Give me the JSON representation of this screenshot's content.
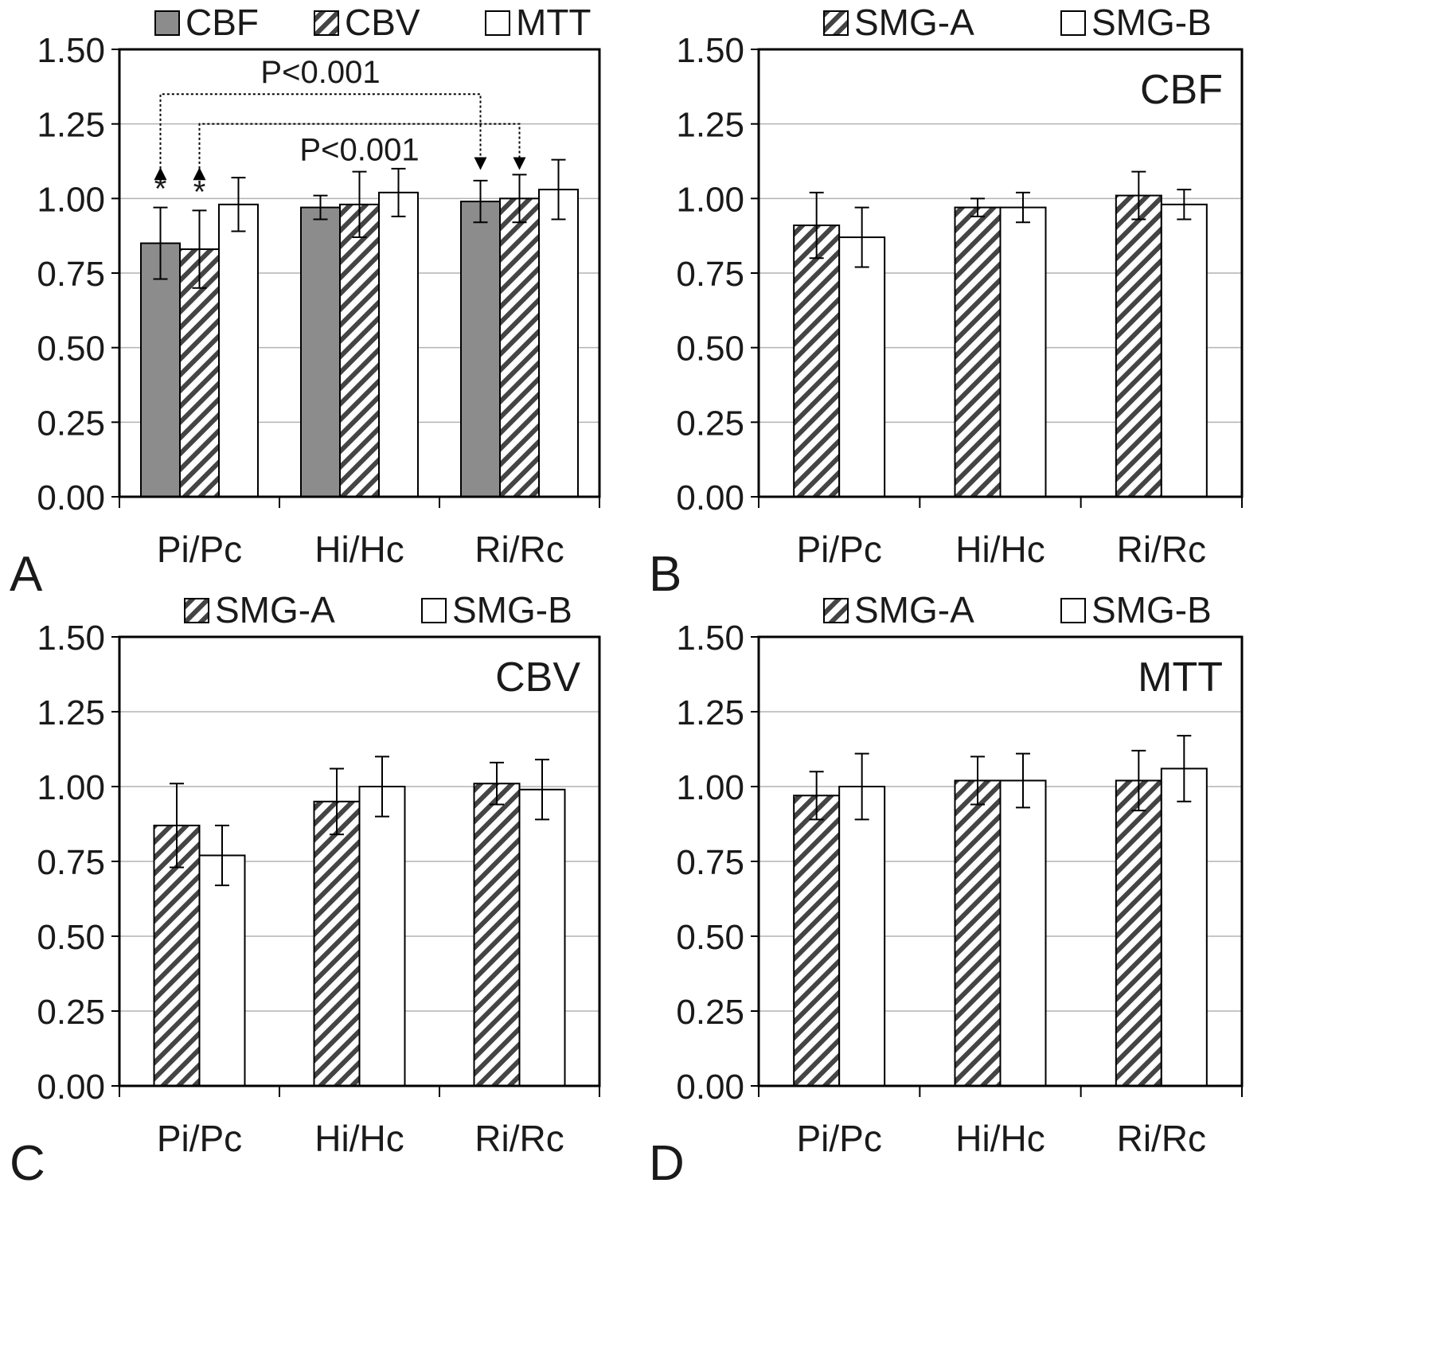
{
  "colors": {
    "filled": "#8c8c8c",
    "hatch": "#444444",
    "white": "#ffffff",
    "axis": "#000000",
    "grid": "#b3b3b3"
  },
  "chart_data": [
    {
      "panel_label": "A",
      "type": "bar",
      "categories": [
        "Pi/Pc",
        "Hi/Hc",
        "Ri/Rc"
      ],
      "ylim": [
        0,
        1.5
      ],
      "yticks": [
        "0.00",
        "0.25",
        "0.50",
        "0.75",
        "1.00",
        "1.25",
        "1.50"
      ],
      "inset_title": "",
      "grid": true,
      "legend_position": "top",
      "series": [
        {
          "name": "CBF",
          "style": "filled",
          "values": [
            0.85,
            0.97,
            0.99
          ],
          "errors": [
            0.12,
            0.04,
            0.07
          ]
        },
        {
          "name": "CBV",
          "style": "hatched",
          "values": [
            0.83,
            0.98,
            1.0
          ],
          "errors": [
            0.13,
            0.11,
            0.08
          ]
        },
        {
          "name": "MTT",
          "style": "white",
          "values": [
            0.98,
            1.02,
            1.03
          ],
          "errors": [
            0.09,
            0.08,
            0.1
          ]
        }
      ],
      "significance_marks": [
        "*",
        "*"
      ],
      "annotations": [
        {
          "text": "P<0.001",
          "from": "Pi/Pc CBF",
          "to": "Ri/Rc CBF"
        },
        {
          "text": "P<0.001",
          "from": "Pi/Pc CBV",
          "to": "Ri/Rc CBV"
        }
      ]
    },
    {
      "panel_label": "B",
      "type": "bar",
      "categories": [
        "Pi/Pc",
        "Hi/Hc",
        "Ri/Rc"
      ],
      "ylim": [
        0,
        1.5
      ],
      "yticks": [
        "0.00",
        "0.25",
        "0.50",
        "0.75",
        "1.00",
        "1.25",
        "1.50"
      ],
      "inset_title": "CBF",
      "grid": true,
      "legend_position": "top",
      "series": [
        {
          "name": "SMG-A",
          "style": "hatched",
          "values": [
            0.91,
            0.97,
            1.01
          ],
          "errors": [
            0.11,
            0.03,
            0.08
          ]
        },
        {
          "name": "SMG-B",
          "style": "white",
          "values": [
            0.87,
            0.97,
            0.98
          ],
          "errors": [
            0.1,
            0.05,
            0.05
          ]
        }
      ]
    },
    {
      "panel_label": "C",
      "type": "bar",
      "categories": [
        "Pi/Pc",
        "Hi/Hc",
        "Ri/Rc"
      ],
      "ylim": [
        0,
        1.5
      ],
      "yticks": [
        "0.00",
        "0.25",
        "0.50",
        "0.75",
        "1.00",
        "1.25",
        "1.50"
      ],
      "inset_title": "CBV",
      "grid": true,
      "legend_position": "top",
      "series": [
        {
          "name": "SMG-A",
          "style": "hatched",
          "values": [
            0.87,
            0.95,
            1.01
          ],
          "errors": [
            0.14,
            0.11,
            0.07
          ]
        },
        {
          "name": "SMG-B",
          "style": "white",
          "values": [
            0.77,
            1.0,
            0.99
          ],
          "errors": [
            0.1,
            0.1,
            0.1
          ]
        }
      ]
    },
    {
      "panel_label": "D",
      "type": "bar",
      "categories": [
        "Pi/Pc",
        "Hi/Hc",
        "Ri/Rc"
      ],
      "ylim": [
        0,
        1.5
      ],
      "yticks": [
        "0.00",
        "0.25",
        "0.50",
        "0.75",
        "1.00",
        "1.25",
        "1.50"
      ],
      "inset_title": "MTT",
      "grid": true,
      "legend_position": "top",
      "series": [
        {
          "name": "SMG-A",
          "style": "hatched",
          "values": [
            0.97,
            1.02,
            1.02
          ],
          "errors": [
            0.08,
            0.08,
            0.1
          ]
        },
        {
          "name": "SMG-B",
          "style": "white",
          "values": [
            1.0,
            1.02,
            1.06
          ],
          "errors": [
            0.11,
            0.09,
            0.11
          ]
        }
      ]
    }
  ]
}
